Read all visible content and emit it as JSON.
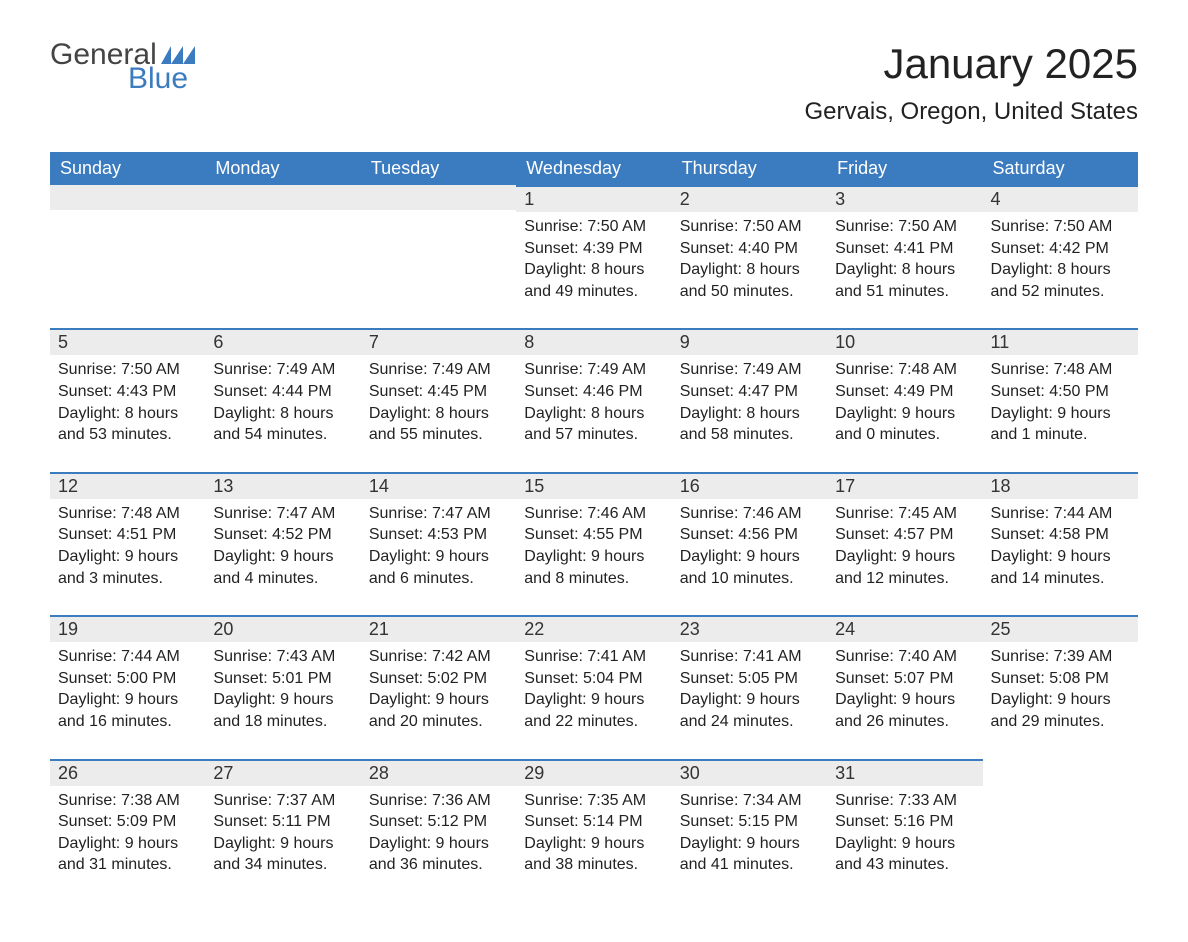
{
  "logo": {
    "text_general": "General",
    "text_blue": "Blue",
    "color_general": "#444444",
    "color_blue": "#3b7bbf"
  },
  "title": "January 2025",
  "location": "Gervais, Oregon, United States",
  "colors": {
    "header_bg": "#3b7bbf",
    "header_text": "#ffffff",
    "daynum_bg": "#ececec",
    "daynum_border": "#3b7bbf",
    "body_text": "#222222",
    "page_bg": "#ffffff"
  },
  "fonts": {
    "title_size_pt": 32,
    "location_size_pt": 18,
    "header_size_pt": 14,
    "body_size_pt": 12
  },
  "layout": {
    "columns": 7,
    "rows": 5,
    "first_day_column_index": 3
  },
  "weekdays": [
    "Sunday",
    "Monday",
    "Tuesday",
    "Wednesday",
    "Thursday",
    "Friday",
    "Saturday"
  ],
  "days": [
    {
      "n": "1",
      "sunrise": "Sunrise: 7:50 AM",
      "sunset": "Sunset: 4:39 PM",
      "daylight": "Daylight: 8 hours and 49 minutes."
    },
    {
      "n": "2",
      "sunrise": "Sunrise: 7:50 AM",
      "sunset": "Sunset: 4:40 PM",
      "daylight": "Daylight: 8 hours and 50 minutes."
    },
    {
      "n": "3",
      "sunrise": "Sunrise: 7:50 AM",
      "sunset": "Sunset: 4:41 PM",
      "daylight": "Daylight: 8 hours and 51 minutes."
    },
    {
      "n": "4",
      "sunrise": "Sunrise: 7:50 AM",
      "sunset": "Sunset: 4:42 PM",
      "daylight": "Daylight: 8 hours and 52 minutes."
    },
    {
      "n": "5",
      "sunrise": "Sunrise: 7:50 AM",
      "sunset": "Sunset: 4:43 PM",
      "daylight": "Daylight: 8 hours and 53 minutes."
    },
    {
      "n": "6",
      "sunrise": "Sunrise: 7:49 AM",
      "sunset": "Sunset: 4:44 PM",
      "daylight": "Daylight: 8 hours and 54 minutes."
    },
    {
      "n": "7",
      "sunrise": "Sunrise: 7:49 AM",
      "sunset": "Sunset: 4:45 PM",
      "daylight": "Daylight: 8 hours and 55 minutes."
    },
    {
      "n": "8",
      "sunrise": "Sunrise: 7:49 AM",
      "sunset": "Sunset: 4:46 PM",
      "daylight": "Daylight: 8 hours and 57 minutes."
    },
    {
      "n": "9",
      "sunrise": "Sunrise: 7:49 AM",
      "sunset": "Sunset: 4:47 PM",
      "daylight": "Daylight: 8 hours and 58 minutes."
    },
    {
      "n": "10",
      "sunrise": "Sunrise: 7:48 AM",
      "sunset": "Sunset: 4:49 PM",
      "daylight": "Daylight: 9 hours and 0 minutes."
    },
    {
      "n": "11",
      "sunrise": "Sunrise: 7:48 AM",
      "sunset": "Sunset: 4:50 PM",
      "daylight": "Daylight: 9 hours and 1 minute."
    },
    {
      "n": "12",
      "sunrise": "Sunrise: 7:48 AM",
      "sunset": "Sunset: 4:51 PM",
      "daylight": "Daylight: 9 hours and 3 minutes."
    },
    {
      "n": "13",
      "sunrise": "Sunrise: 7:47 AM",
      "sunset": "Sunset: 4:52 PM",
      "daylight": "Daylight: 9 hours and 4 minutes."
    },
    {
      "n": "14",
      "sunrise": "Sunrise: 7:47 AM",
      "sunset": "Sunset: 4:53 PM",
      "daylight": "Daylight: 9 hours and 6 minutes."
    },
    {
      "n": "15",
      "sunrise": "Sunrise: 7:46 AM",
      "sunset": "Sunset: 4:55 PM",
      "daylight": "Daylight: 9 hours and 8 minutes."
    },
    {
      "n": "16",
      "sunrise": "Sunrise: 7:46 AM",
      "sunset": "Sunset: 4:56 PM",
      "daylight": "Daylight: 9 hours and 10 minutes."
    },
    {
      "n": "17",
      "sunrise": "Sunrise: 7:45 AM",
      "sunset": "Sunset: 4:57 PM",
      "daylight": "Daylight: 9 hours and 12 minutes."
    },
    {
      "n": "18",
      "sunrise": "Sunrise: 7:44 AM",
      "sunset": "Sunset: 4:58 PM",
      "daylight": "Daylight: 9 hours and 14 minutes."
    },
    {
      "n": "19",
      "sunrise": "Sunrise: 7:44 AM",
      "sunset": "Sunset: 5:00 PM",
      "daylight": "Daylight: 9 hours and 16 minutes."
    },
    {
      "n": "20",
      "sunrise": "Sunrise: 7:43 AM",
      "sunset": "Sunset: 5:01 PM",
      "daylight": "Daylight: 9 hours and 18 minutes."
    },
    {
      "n": "21",
      "sunrise": "Sunrise: 7:42 AM",
      "sunset": "Sunset: 5:02 PM",
      "daylight": "Daylight: 9 hours and 20 minutes."
    },
    {
      "n": "22",
      "sunrise": "Sunrise: 7:41 AM",
      "sunset": "Sunset: 5:04 PM",
      "daylight": "Daylight: 9 hours and 22 minutes."
    },
    {
      "n": "23",
      "sunrise": "Sunrise: 7:41 AM",
      "sunset": "Sunset: 5:05 PM",
      "daylight": "Daylight: 9 hours and 24 minutes."
    },
    {
      "n": "24",
      "sunrise": "Sunrise: 7:40 AM",
      "sunset": "Sunset: 5:07 PM",
      "daylight": "Daylight: 9 hours and 26 minutes."
    },
    {
      "n": "25",
      "sunrise": "Sunrise: 7:39 AM",
      "sunset": "Sunset: 5:08 PM",
      "daylight": "Daylight: 9 hours and 29 minutes."
    },
    {
      "n": "26",
      "sunrise": "Sunrise: 7:38 AM",
      "sunset": "Sunset: 5:09 PM",
      "daylight": "Daylight: 9 hours and 31 minutes."
    },
    {
      "n": "27",
      "sunrise": "Sunrise: 7:37 AM",
      "sunset": "Sunset: 5:11 PM",
      "daylight": "Daylight: 9 hours and 34 minutes."
    },
    {
      "n": "28",
      "sunrise": "Sunrise: 7:36 AM",
      "sunset": "Sunset: 5:12 PM",
      "daylight": "Daylight: 9 hours and 36 minutes."
    },
    {
      "n": "29",
      "sunrise": "Sunrise: 7:35 AM",
      "sunset": "Sunset: 5:14 PM",
      "daylight": "Daylight: 9 hours and 38 minutes."
    },
    {
      "n": "30",
      "sunrise": "Sunrise: 7:34 AM",
      "sunset": "Sunset: 5:15 PM",
      "daylight": "Daylight: 9 hours and 41 minutes."
    },
    {
      "n": "31",
      "sunrise": "Sunrise: 7:33 AM",
      "sunset": "Sunset: 5:16 PM",
      "daylight": "Daylight: 9 hours and 43 minutes."
    }
  ]
}
